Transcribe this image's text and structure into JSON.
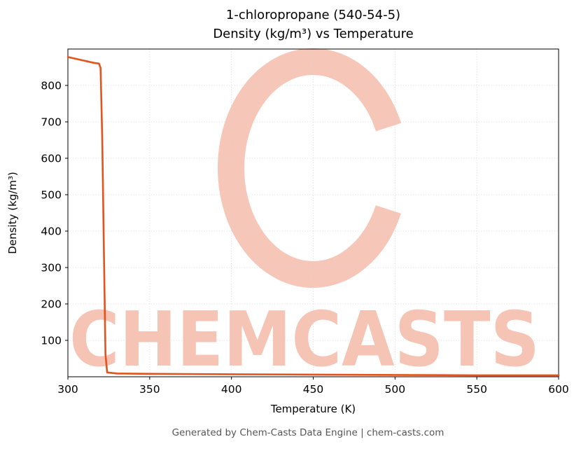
{
  "title": {
    "line1": "1-chloropropane (540-54-5)",
    "line2": "Density (kg/m³) vs Temperature"
  },
  "footer": {
    "text": "Generated by Chem-Casts Data Engine | chem-casts.com"
  },
  "watermark": {
    "text": "CHEMCASTS",
    "ring_color": "#f6c6b8",
    "text_color": "#f5c4b4"
  },
  "chart_data": {
    "type": "line",
    "title": "1-chloropropane (540-54-5) Density (kg/m³) vs Temperature",
    "xlabel": "Temperature (K)",
    "ylabel": "Density (kg/m³)",
    "xlim": [
      300,
      600
    ],
    "ylim": [
      0,
      900
    ],
    "x_ticks": [
      300,
      350,
      400,
      450,
      500,
      550,
      600
    ],
    "y_ticks": [
      100,
      200,
      300,
      400,
      500,
      600,
      700,
      800
    ],
    "grid": true,
    "legend": false,
    "line_color": "#e2531d",
    "line_width": 2.6,
    "series": [
      {
        "name": "density",
        "points": [
          [
            300,
            878
          ],
          [
            304,
            874
          ],
          [
            308,
            870
          ],
          [
            312,
            866
          ],
          [
            316,
            862
          ],
          [
            319,
            860
          ],
          [
            320,
            848
          ],
          [
            321,
            650
          ],
          [
            322,
            350
          ],
          [
            323,
            60
          ],
          [
            324,
            12
          ],
          [
            330,
            9
          ],
          [
            350,
            8
          ],
          [
            400,
            7
          ],
          [
            450,
            6
          ],
          [
            500,
            5
          ],
          [
            550,
            4
          ],
          [
            600,
            4
          ]
        ]
      }
    ]
  }
}
